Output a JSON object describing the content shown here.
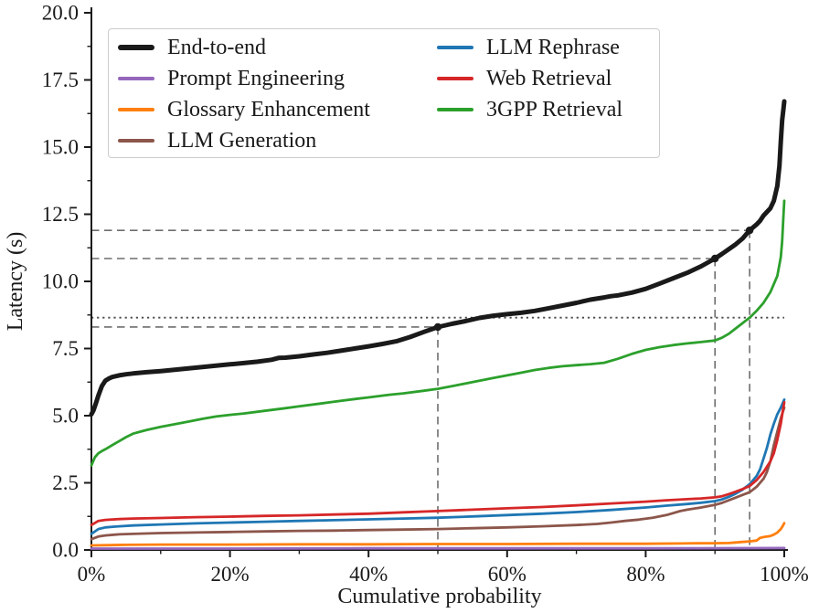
{
  "figure": {
    "background": "#ffffff",
    "xlabel": "Cumulative probability",
    "ylabel": "Latency (s)"
  },
  "chart_data": {
    "type": "line",
    "title": "",
    "xlabel": "Cumulative probability",
    "ylabel": "Latency (s)",
    "xlim": [
      0,
      100
    ],
    "ylim": [
      0,
      20
    ],
    "grid": false,
    "legend_position": "upper left, 2 columns",
    "x_tick_values": [
      0,
      20,
      40,
      60,
      80,
      100
    ],
    "x_tick_labels": [
      "0%",
      "20%",
      "40%",
      "60%",
      "80%",
      "100%"
    ],
    "x_minor_tick_values": [
      10,
      30,
      50,
      70,
      90
    ],
    "y_tick_values": [
      0,
      2.5,
      5,
      7.5,
      10,
      12.5,
      15,
      17.5,
      20
    ],
    "y_tick_labels": [
      "0.0",
      "2.5",
      "5.0",
      "7.5",
      "10.0",
      "12.5",
      "15.0",
      "17.5",
      "20.0"
    ],
    "y_minor_tick_values": [
      1.25,
      3.75,
      6.25,
      8.75,
      11.25,
      13.75,
      16.25,
      18.75
    ],
    "axis_color": "#1a1a1a",
    "ref_line_color": "#6e6e6e",
    "mean_line": {
      "style": "dotted",
      "value": 8.65,
      "color": "#4a4a4a",
      "span": "full-width"
    },
    "percentile_markers": [
      {
        "percentile": 50,
        "value": 8.3
      },
      {
        "percentile": 90,
        "value": 10.85
      },
      {
        "percentile": 95,
        "value": 11.9
      }
    ],
    "legend_columns": [
      [
        0,
        1,
        2,
        3
      ],
      [
        4,
        5,
        6
      ]
    ],
    "series": [
      {
        "name": "End-to-end",
        "color": "#1a1a1a",
        "line_width": 5,
        "points": [
          [
            0,
            5.05
          ],
          [
            0.3,
            5.2
          ],
          [
            0.7,
            5.5
          ],
          [
            1,
            5.75
          ],
          [
            1.5,
            6.1
          ],
          [
            2,
            6.3
          ],
          [
            2.5,
            6.38
          ],
          [
            3,
            6.44
          ],
          [
            4,
            6.5
          ],
          [
            5,
            6.54
          ],
          [
            6,
            6.57
          ],
          [
            8,
            6.62
          ],
          [
            10,
            6.66
          ],
          [
            12,
            6.71
          ],
          [
            14,
            6.76
          ],
          [
            16,
            6.81
          ],
          [
            18,
            6.86
          ],
          [
            20,
            6.91
          ],
          [
            22,
            6.96
          ],
          [
            24,
            7.01
          ],
          [
            26,
            7.08
          ],
          [
            27,
            7.15
          ],
          [
            28,
            7.16
          ],
          [
            30,
            7.21
          ],
          [
            32,
            7.28
          ],
          [
            34,
            7.34
          ],
          [
            36,
            7.42
          ],
          [
            38,
            7.5
          ],
          [
            40,
            7.58
          ],
          [
            42,
            7.67
          ],
          [
            44,
            7.77
          ],
          [
            46,
            7.93
          ],
          [
            48,
            8.12
          ],
          [
            50,
            8.3
          ],
          [
            52,
            8.42
          ],
          [
            54,
            8.52
          ],
          [
            56,
            8.64
          ],
          [
            58,
            8.72
          ],
          [
            60,
            8.78
          ],
          [
            62,
            8.83
          ],
          [
            64,
            8.9
          ],
          [
            66,
            9.0
          ],
          [
            68,
            9.1
          ],
          [
            70,
            9.2
          ],
          [
            72,
            9.32
          ],
          [
            74,
            9.4
          ],
          [
            75,
            9.45
          ],
          [
            76,
            9.48
          ],
          [
            78,
            9.58
          ],
          [
            80,
            9.72
          ],
          [
            82,
            9.92
          ],
          [
            84,
            10.12
          ],
          [
            86,
            10.32
          ],
          [
            88,
            10.56
          ],
          [
            90,
            10.85
          ],
          [
            91,
            11.02
          ],
          [
            92,
            11.2
          ],
          [
            93,
            11.38
          ],
          [
            94,
            11.6
          ],
          [
            95,
            11.9
          ],
          [
            96,
            12.12
          ],
          [
            96.5,
            12.25
          ],
          [
            97,
            12.45
          ],
          [
            98,
            12.72
          ],
          [
            98.5,
            13.0
          ],
          [
            99,
            13.55
          ],
          [
            99.3,
            14.3
          ],
          [
            99.5,
            15.2
          ],
          [
            99.7,
            16.0
          ],
          [
            99.9,
            16.45
          ],
          [
            100,
            16.7
          ]
        ]
      },
      {
        "name": "Prompt Engineering",
        "color": "#9467bd",
        "line_width": 2.8,
        "points": [
          [
            0,
            0.05
          ],
          [
            20,
            0.05
          ],
          [
            40,
            0.06
          ],
          [
            60,
            0.06
          ],
          [
            80,
            0.06
          ],
          [
            100,
            0.07
          ]
        ]
      },
      {
        "name": "Glossary Enhancement",
        "color": "#ff7f0e",
        "line_width": 2.8,
        "points": [
          [
            0,
            0.17
          ],
          [
            5,
            0.19
          ],
          [
            10,
            0.2
          ],
          [
            20,
            0.2
          ],
          [
            30,
            0.21
          ],
          [
            40,
            0.21
          ],
          [
            50,
            0.22
          ],
          [
            60,
            0.22
          ],
          [
            70,
            0.23
          ],
          [
            80,
            0.23
          ],
          [
            85,
            0.24
          ],
          [
            88,
            0.25
          ],
          [
            90,
            0.25
          ],
          [
            92,
            0.26
          ],
          [
            93,
            0.28
          ],
          [
            94,
            0.3
          ],
          [
            95,
            0.32
          ],
          [
            96,
            0.35
          ],
          [
            96.5,
            0.45
          ],
          [
            97,
            0.48
          ],
          [
            98,
            0.52
          ],
          [
            98.5,
            0.57
          ],
          [
            99,
            0.65
          ],
          [
            99.5,
            0.78
          ],
          [
            99.8,
            0.9
          ],
          [
            100,
            1.0
          ]
        ]
      },
      {
        "name": "LLM Generation",
        "color": "#8c564b",
        "line_width": 2.8,
        "points": [
          [
            0,
            0.4
          ],
          [
            1,
            0.5
          ],
          [
            2,
            0.54
          ],
          [
            4,
            0.58
          ],
          [
            6,
            0.6
          ],
          [
            10,
            0.63
          ],
          [
            15,
            0.65
          ],
          [
            20,
            0.67
          ],
          [
            25,
            0.69
          ],
          [
            30,
            0.71
          ],
          [
            35,
            0.72
          ],
          [
            40,
            0.74
          ],
          [
            45,
            0.76
          ],
          [
            50,
            0.78
          ],
          [
            55,
            0.81
          ],
          [
            60,
            0.84
          ],
          [
            65,
            0.88
          ],
          [
            70,
            0.93
          ],
          [
            73,
            0.97
          ],
          [
            75,
            1.02
          ],
          [
            77,
            1.08
          ],
          [
            79,
            1.13
          ],
          [
            81,
            1.2
          ],
          [
            83,
            1.3
          ],
          [
            85,
            1.45
          ],
          [
            86,
            1.5
          ],
          [
            88,
            1.58
          ],
          [
            90,
            1.68
          ],
          [
            91,
            1.75
          ],
          [
            92,
            1.85
          ],
          [
            93,
            1.95
          ],
          [
            94,
            2.05
          ],
          [
            95,
            2.15
          ],
          [
            96,
            2.35
          ],
          [
            97,
            2.65
          ],
          [
            97.5,
            2.9
          ],
          [
            98,
            3.3
          ],
          [
            98.5,
            3.9
          ],
          [
            99,
            4.4
          ],
          [
            99.5,
            4.9
          ],
          [
            99.8,
            5.15
          ],
          [
            100,
            5.3
          ]
        ]
      },
      {
        "name": "LLM Rephrase",
        "color": "#1f77b4",
        "line_width": 2.8,
        "points": [
          [
            0,
            0.6
          ],
          [
            1,
            0.78
          ],
          [
            2,
            0.84
          ],
          [
            4,
            0.88
          ],
          [
            6,
            0.91
          ],
          [
            10,
            0.95
          ],
          [
            15,
            0.99
          ],
          [
            20,
            1.02
          ],
          [
            25,
            1.05
          ],
          [
            30,
            1.08
          ],
          [
            35,
            1.11
          ],
          [
            40,
            1.14
          ],
          [
            45,
            1.17
          ],
          [
            50,
            1.2
          ],
          [
            55,
            1.25
          ],
          [
            60,
            1.3
          ],
          [
            65,
            1.35
          ],
          [
            70,
            1.41
          ],
          [
            75,
            1.49
          ],
          [
            80,
            1.58
          ],
          [
            83,
            1.65
          ],
          [
            86,
            1.71
          ],
          [
            88,
            1.76
          ],
          [
            90,
            1.82
          ],
          [
            91,
            1.88
          ],
          [
            92,
            1.98
          ],
          [
            93,
            2.1
          ],
          [
            94,
            2.25
          ],
          [
            95,
            2.45
          ],
          [
            96,
            2.75
          ],
          [
            96.5,
            3.0
          ],
          [
            97,
            3.4
          ],
          [
            97.5,
            3.8
          ],
          [
            98,
            4.3
          ],
          [
            98.5,
            4.7
          ],
          [
            99,
            5.05
          ],
          [
            99.5,
            5.3
          ],
          [
            100,
            5.6
          ]
        ]
      },
      {
        "name": "Web Retrieval",
        "color": "#d62728",
        "line_width": 2.8,
        "points": [
          [
            0,
            0.93
          ],
          [
            1,
            1.08
          ],
          [
            2,
            1.12
          ],
          [
            4,
            1.15
          ],
          [
            6,
            1.17
          ],
          [
            10,
            1.19
          ],
          [
            15,
            1.22
          ],
          [
            20,
            1.24
          ],
          [
            25,
            1.27
          ],
          [
            30,
            1.29
          ],
          [
            35,
            1.32
          ],
          [
            40,
            1.35
          ],
          [
            45,
            1.4
          ],
          [
            50,
            1.45
          ],
          [
            55,
            1.5
          ],
          [
            60,
            1.55
          ],
          [
            65,
            1.6
          ],
          [
            70,
            1.66
          ],
          [
            75,
            1.73
          ],
          [
            80,
            1.8
          ],
          [
            83,
            1.85
          ],
          [
            86,
            1.89
          ],
          [
            88,
            1.92
          ],
          [
            90,
            1.96
          ],
          [
            91,
            2.0
          ],
          [
            92,
            2.08
          ],
          [
            93,
            2.17
          ],
          [
            94,
            2.27
          ],
          [
            95,
            2.38
          ],
          [
            96,
            2.6
          ],
          [
            97,
            2.9
          ],
          [
            98,
            3.3
          ],
          [
            98.5,
            3.6
          ],
          [
            99,
            4.1
          ],
          [
            99.5,
            4.7
          ],
          [
            99.8,
            5.2
          ],
          [
            100,
            5.5
          ]
        ]
      },
      {
        "name": "3GPP Retrieval",
        "color": "#2ca02c",
        "line_width": 2.8,
        "points": [
          [
            0,
            3.15
          ],
          [
            0.5,
            3.45
          ],
          [
            1,
            3.6
          ],
          [
            1.5,
            3.68
          ],
          [
            2,
            3.75
          ],
          [
            3,
            3.9
          ],
          [
            4,
            4.05
          ],
          [
            5,
            4.2
          ],
          [
            6,
            4.33
          ],
          [
            7,
            4.4
          ],
          [
            8,
            4.47
          ],
          [
            10,
            4.58
          ],
          [
            12,
            4.68
          ],
          [
            14,
            4.78
          ],
          [
            16,
            4.88
          ],
          [
            18,
            4.97
          ],
          [
            20,
            5.03
          ],
          [
            22,
            5.08
          ],
          [
            25,
            5.18
          ],
          [
            28,
            5.28
          ],
          [
            30,
            5.35
          ],
          [
            33,
            5.45
          ],
          [
            35,
            5.52
          ],
          [
            38,
            5.62
          ],
          [
            40,
            5.68
          ],
          [
            43,
            5.78
          ],
          [
            45,
            5.83
          ],
          [
            48,
            5.93
          ],
          [
            50,
            6.0
          ],
          [
            52,
            6.1
          ],
          [
            55,
            6.25
          ],
          [
            58,
            6.4
          ],
          [
            60,
            6.5
          ],
          [
            62,
            6.6
          ],
          [
            64,
            6.7
          ],
          [
            66,
            6.78
          ],
          [
            68,
            6.84
          ],
          [
            70,
            6.88
          ],
          [
            72,
            6.92
          ],
          [
            74,
            6.97
          ],
          [
            76,
            7.12
          ],
          [
            78,
            7.3
          ],
          [
            80,
            7.45
          ],
          [
            82,
            7.55
          ],
          [
            84,
            7.63
          ],
          [
            86,
            7.69
          ],
          [
            88,
            7.74
          ],
          [
            90,
            7.8
          ],
          [
            91,
            7.9
          ],
          [
            92,
            8.05
          ],
          [
            93,
            8.25
          ],
          [
            94,
            8.45
          ],
          [
            95,
            8.65
          ],
          [
            96,
            8.9
          ],
          [
            97,
            9.2
          ],
          [
            98,
            9.6
          ],
          [
            99,
            10.2
          ],
          [
            99.5,
            10.9
          ],
          [
            99.7,
            11.5
          ],
          [
            99.9,
            12.5
          ],
          [
            100,
            13.0
          ]
        ]
      }
    ]
  }
}
